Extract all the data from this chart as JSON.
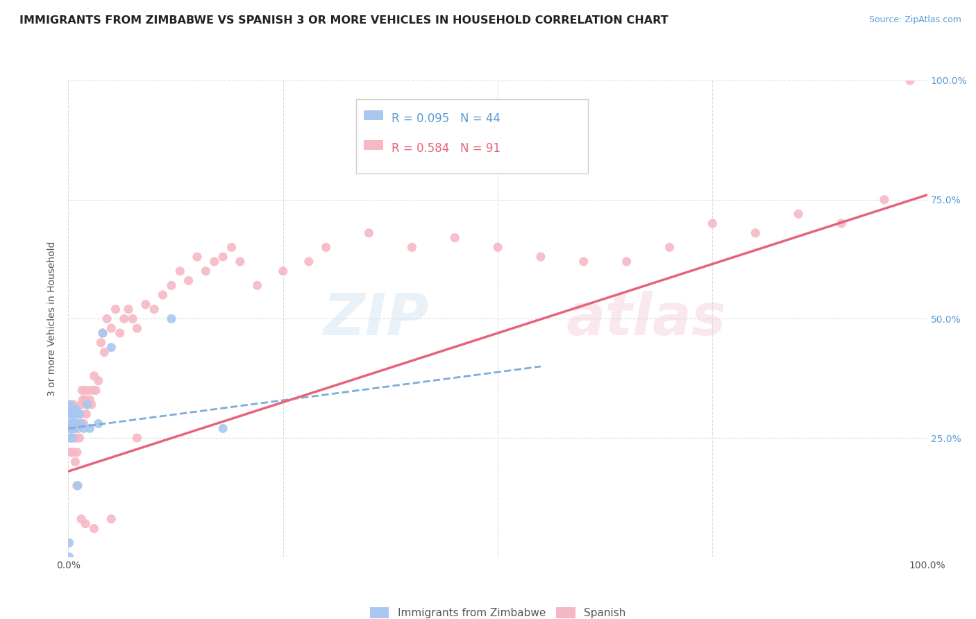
{
  "title": "IMMIGRANTS FROM ZIMBABWE VS SPANISH 3 OR MORE VEHICLES IN HOUSEHOLD CORRELATION CHART",
  "source": "Source: ZipAtlas.com",
  "ylabel": "3 or more Vehicles in Household",
  "watermark_line1": "ZIP",
  "watermark_line2": "atlas",
  "legend_blue_r": "R = 0.095",
  "legend_blue_n": "N = 44",
  "legend_pink_r": "R = 0.584",
  "legend_pink_n": "N = 91",
  "xlim": [
    0,
    1
  ],
  "ylim": [
    0,
    1
  ],
  "ytick_vals": [
    0.0,
    0.25,
    0.5,
    0.75,
    1.0
  ],
  "ytick_labels_right": [
    "",
    "25.0%",
    "50.0%",
    "75.0%",
    "100.0%"
  ],
  "grid_color": "#dddddd",
  "background_color": "#ffffff",
  "blue_color": "#a8c8f0",
  "pink_color": "#f5b8c4",
  "blue_line_color": "#7aaddb",
  "pink_line_color": "#e8637a",
  "title_fontsize": 11.5,
  "source_fontsize": 9,
  "axis_label_fontsize": 10,
  "tick_fontsize": 10,
  "blue_scatter_x": [
    0.001,
    0.001,
    0.002,
    0.002,
    0.002,
    0.003,
    0.003,
    0.003,
    0.003,
    0.003,
    0.004,
    0.004,
    0.004,
    0.004,
    0.004,
    0.004,
    0.005,
    0.005,
    0.005,
    0.005,
    0.005,
    0.005,
    0.006,
    0.006,
    0.006,
    0.006,
    0.007,
    0.007,
    0.008,
    0.008,
    0.009,
    0.009,
    0.01,
    0.011,
    0.013,
    0.015,
    0.018,
    0.022,
    0.025,
    0.035,
    0.04,
    0.05,
    0.12,
    0.18
  ],
  "blue_scatter_y": [
    0.03,
    0.0,
    0.28,
    0.32,
    0.3,
    0.27,
    0.28,
    0.3,
    0.27,
    0.25,
    0.28,
    0.3,
    0.31,
    0.27,
    0.28,
    0.3,
    0.27,
    0.3,
    0.27,
    0.25,
    0.28,
    0.3,
    0.28,
    0.27,
    0.3,
    0.31,
    0.28,
    0.3,
    0.28,
    0.27,
    0.3,
    0.31,
    0.28,
    0.15,
    0.3,
    0.28,
    0.27,
    0.32,
    0.27,
    0.28,
    0.47,
    0.44,
    0.5,
    0.27
  ],
  "pink_scatter_x": [
    0.001,
    0.002,
    0.002,
    0.003,
    0.003,
    0.003,
    0.004,
    0.004,
    0.005,
    0.005,
    0.005,
    0.006,
    0.006,
    0.007,
    0.007,
    0.008,
    0.008,
    0.009,
    0.009,
    0.01,
    0.01,
    0.011,
    0.012,
    0.013,
    0.014,
    0.015,
    0.015,
    0.016,
    0.017,
    0.018,
    0.019,
    0.02,
    0.021,
    0.022,
    0.023,
    0.025,
    0.027,
    0.028,
    0.03,
    0.032,
    0.035,
    0.038,
    0.04,
    0.042,
    0.045,
    0.05,
    0.055,
    0.06,
    0.065,
    0.07,
    0.075,
    0.08,
    0.09,
    0.1,
    0.11,
    0.12,
    0.13,
    0.14,
    0.15,
    0.16,
    0.17,
    0.18,
    0.19,
    0.2,
    0.22,
    0.25,
    0.28,
    0.3,
    0.35,
    0.4,
    0.45,
    0.5,
    0.55,
    0.6,
    0.65,
    0.7,
    0.75,
    0.8,
    0.85,
    0.9,
    0.95,
    0.98,
    0.003,
    0.005,
    0.008,
    0.01,
    0.015,
    0.02,
    0.03,
    0.05,
    0.08
  ],
  "pink_scatter_y": [
    0.27,
    0.28,
    0.25,
    0.3,
    0.27,
    0.25,
    0.28,
    0.3,
    0.25,
    0.28,
    0.27,
    0.3,
    0.32,
    0.27,
    0.3,
    0.28,
    0.27,
    0.25,
    0.3,
    0.22,
    0.28,
    0.3,
    0.27,
    0.25,
    0.3,
    0.28,
    0.32,
    0.35,
    0.33,
    0.28,
    0.35,
    0.33,
    0.3,
    0.32,
    0.35,
    0.33,
    0.32,
    0.35,
    0.38,
    0.35,
    0.37,
    0.45,
    0.47,
    0.43,
    0.5,
    0.48,
    0.52,
    0.47,
    0.5,
    0.52,
    0.5,
    0.48,
    0.53,
    0.52,
    0.55,
    0.57,
    0.6,
    0.58,
    0.63,
    0.6,
    0.62,
    0.63,
    0.65,
    0.62,
    0.57,
    0.6,
    0.62,
    0.65,
    0.68,
    0.65,
    0.67,
    0.65,
    0.63,
    0.62,
    0.62,
    0.65,
    0.7,
    0.68,
    0.72,
    0.7,
    0.75,
    1.0,
    0.22,
    0.22,
    0.2,
    0.15,
    0.08,
    0.07,
    0.06,
    0.08,
    0.25
  ],
  "blue_trend_x": [
    0.0,
    0.55
  ],
  "blue_trend_y": [
    0.27,
    0.4
  ],
  "pink_trend_x": [
    0.0,
    1.0
  ],
  "pink_trend_y": [
    0.18,
    0.76
  ]
}
